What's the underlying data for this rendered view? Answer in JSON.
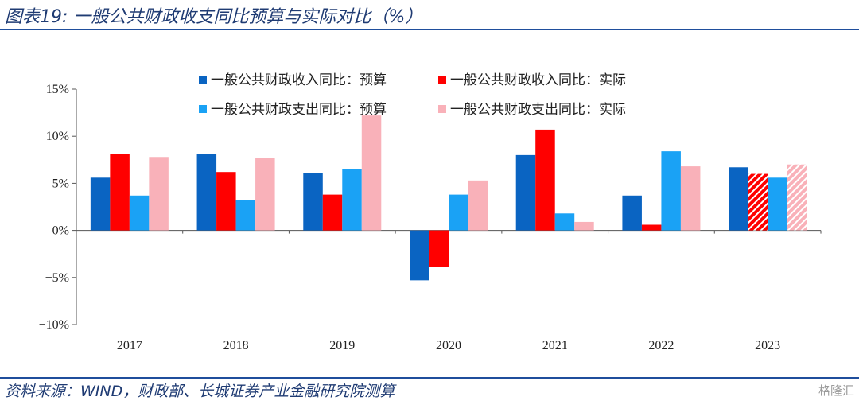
{
  "header": {
    "title": "图表19:  一般公共财政收支同比预算与实际对比（%）"
  },
  "footer": {
    "source": "资料来源：WIND，财政部、长城证券产业金融研究院测算",
    "watermark": "格隆汇"
  },
  "chart_data": {
    "type": "bar",
    "title": "图表19:  一般公共财政收支同比预算与实际对比（%）",
    "categories": [
      "2017",
      "2018",
      "2019",
      "2020",
      "2021",
      "2022",
      "2023"
    ],
    "ylim": [
      -10,
      15
    ],
    "yticks": [
      15,
      10,
      5,
      0,
      -5,
      -10
    ],
    "ytick_labels": [
      "15%",
      "10%",
      "5%",
      "0%",
      "−5%",
      "−10%"
    ],
    "grid": false,
    "legend_position": "top",
    "series": [
      {
        "name": "一般公共财政收入同比：预算",
        "color": "#0a64c2",
        "values": [
          5.6,
          8.1,
          6.1,
          -5.3,
          8.0,
          3.7,
          6.7
        ],
        "hatched": [
          false,
          false,
          false,
          false,
          false,
          false,
          false
        ]
      },
      {
        "name": "一般公共财政收入同比：实际",
        "color": "#ff0000",
        "values": [
          8.1,
          6.2,
          3.8,
          -3.9,
          10.7,
          0.6,
          6.0
        ],
        "hatched": [
          false,
          false,
          false,
          false,
          false,
          false,
          true
        ]
      },
      {
        "name": "一般公共财政支出同比：预算",
        "color": "#1aa2f5",
        "values": [
          3.7,
          3.2,
          6.5,
          3.8,
          1.8,
          8.4,
          5.6
        ],
        "hatched": [
          false,
          false,
          false,
          false,
          false,
          false,
          false
        ]
      },
      {
        "name": "一般公共财政支出同比：实际",
        "color": "#f9b1b9",
        "values": [
          7.8,
          7.7,
          12.2,
          5.3,
          0.9,
          6.8,
          7.0
        ],
        "hatched": [
          false,
          false,
          false,
          false,
          false,
          false,
          true
        ]
      }
    ]
  }
}
